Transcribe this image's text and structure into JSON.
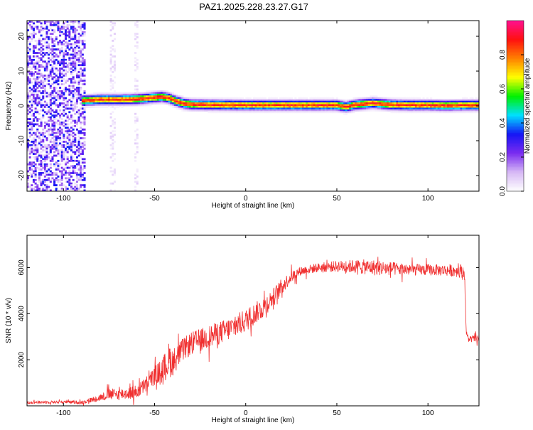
{
  "figure": {
    "title": "PAZ1.2025.228.23.27.G17"
  },
  "chart_data": [
    {
      "type": "heatmap",
      "xlabel": "Height of straight line (km)",
      "ylabel": "Frequency (Hz)",
      "xlim": [
        -120,
        128
      ],
      "ylim": [
        -24.5,
        24.5
      ],
      "xticks": [
        -100,
        -50,
        0,
        50,
        100
      ],
      "yticks": [
        -20,
        -10,
        0,
        10,
        20
      ],
      "colorbar": {
        "label": "Normalized spectral amplitude",
        "range": [
          0,
          1
        ],
        "ticks": [
          0.0,
          0.2,
          0.4,
          0.6,
          0.8
        ],
        "tick_labels": [
          "0.0",
          "0.2",
          "0.4",
          "0.6",
          "0.8"
        ],
        "colormap": [
          "#ffffff",
          "#d6b8f5",
          "#7a2cf0",
          "#1515f5",
          "#00e0ff",
          "#00f000",
          "#ffff00",
          "#ff8000",
          "#ff1010",
          "#ff1090"
        ]
      },
      "ridge": {
        "x": [
          -90,
          -80,
          -70,
          -60,
          -50,
          -46,
          -42,
          -38,
          -34,
          -30,
          -20,
          0,
          20,
          40,
          50,
          55,
          60,
          70,
          80,
          90,
          100,
          110,
          120,
          128
        ],
        "frequency": [
          1.5,
          1.8,
          1.8,
          1.9,
          2.4,
          2.6,
          2.2,
          1.3,
          0.7,
          0.4,
          0.3,
          0.2,
          0.2,
          0.2,
          0.2,
          -0.3,
          0.3,
          0.8,
          0.3,
          0.2,
          0.2,
          0.1,
          0.2,
          0.2
        ],
        "peak_amplitude": 0.95
      },
      "noise_region": {
        "x_from": -120,
        "x_to": -88,
        "amplitude": 0.35
      },
      "noise_strips": [
        -73,
        -60
      ]
    },
    {
      "type": "line",
      "xlabel": "Height of straight line (km)",
      "ylabel": "SNR (10 * v/v)",
      "xlim": [
        -120,
        128
      ],
      "ylim": [
        0,
        7400
      ],
      "xticks": [
        -100,
        -50,
        0,
        50,
        100
      ],
      "yticks": [
        2000,
        4000,
        6000
      ],
      "series": [
        {
          "color": "#f03030",
          "x": [
            -120,
            -100,
            -90,
            -80,
            -75,
            -70,
            -60,
            -55,
            -50,
            -45,
            -42,
            -40,
            -35,
            -30,
            -20,
            -10,
            0,
            10,
            15,
            20,
            25,
            30,
            40,
            50,
            60,
            70,
            80,
            90,
            100,
            110,
            120,
            121,
            122,
            128
          ],
          "values": [
            150,
            170,
            150,
            350,
            500,
            500,
            600,
            900,
            1300,
            1600,
            2000,
            1900,
            2400,
            2700,
            3000,
            3300,
            3700,
            4300,
            4700,
            5200,
            5600,
            5850,
            6000,
            6050,
            6050,
            6000,
            5950,
            5900,
            5900,
            5880,
            5850,
            3200,
            2900,
            2900
          ],
          "noise": [
            60,
            60,
            80,
            150,
            250,
            250,
            300,
            350,
            400,
            600,
            800,
            600,
            500,
            500,
            500,
            500,
            500,
            450,
            400,
            350,
            250,
            200,
            200,
            250,
            300,
            350,
            300,
            250,
            250,
            250,
            300,
            150,
            150,
            150
          ]
        }
      ]
    }
  ]
}
